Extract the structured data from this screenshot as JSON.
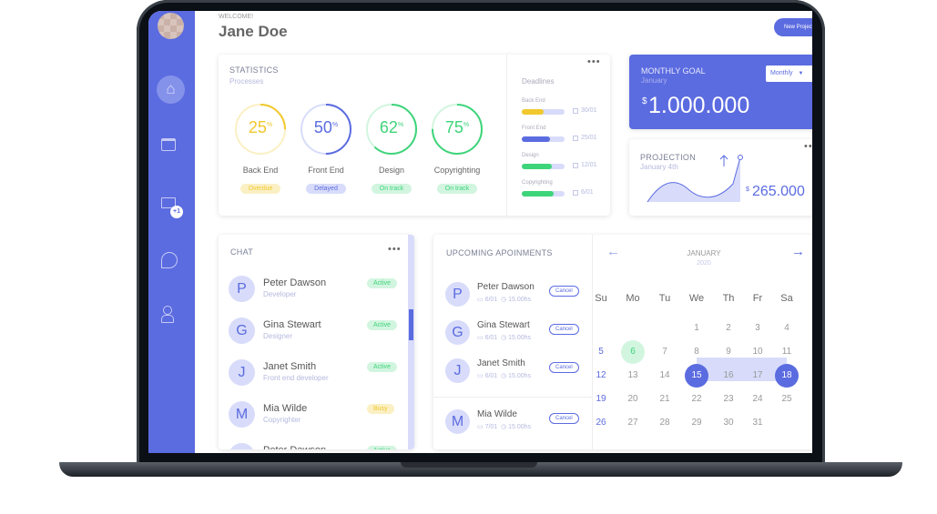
{
  "header": {
    "welcome": "WELCOME!",
    "name": "Jane Doe",
    "new_project": "New Project"
  },
  "sidebar": {
    "items": [
      "home-icon",
      "calendar-icon",
      "mail-icon",
      "chat-icon",
      "user-icon"
    ],
    "mail_badge": "+1"
  },
  "statistics": {
    "title": "STATISTICS",
    "subtitle": "Processes",
    "items": [
      {
        "label": "Back End",
        "value": 25,
        "pct": "25",
        "status": "Overdue",
        "color": "#f1c82e",
        "track": "#fbf0c4",
        "bbg": "#fbf0c4"
      },
      {
        "label": "Front End",
        "value": 50,
        "pct": "50",
        "status": "Delayed",
        "color": "#5b6be0",
        "track": "#d8dcfa",
        "bbg": "#d8dcfa"
      },
      {
        "label": "Design",
        "value": 62,
        "pct": "62",
        "status": "On track",
        "color": "#3ed47a",
        "track": "#d2f5e0",
        "bbg": "#d2f5e0"
      },
      {
        "label": "Copyrighting",
        "value": 75,
        "pct": "75",
        "status": "On track",
        "color": "#3ed47a",
        "track": "#d2f5e0",
        "bbg": "#d2f5e0"
      }
    ],
    "pct_sign": "%"
  },
  "deadlines": {
    "title": "Deadlines",
    "items": [
      {
        "label": "Back End",
        "progress": 50,
        "date": "30/01",
        "color": "#f1c82e"
      },
      {
        "label": "Front End",
        "progress": 65,
        "date": "25/01",
        "color": "#5b6be0"
      },
      {
        "label": "Design",
        "progress": 70,
        "date": "12/01",
        "color": "#3ed47a"
      },
      {
        "label": "Copyrighting",
        "progress": 75,
        "date": "6/01",
        "color": "#3ed47a"
      }
    ]
  },
  "monthly_goal": {
    "title": "MONTHLY GOAL",
    "subtitle": "January",
    "currency": "$",
    "amount": "1.000.000",
    "select": "Monthly"
  },
  "projection": {
    "title": "PROJECTION",
    "subtitle": "January 4th",
    "currency": "$",
    "amount": "265.000"
  },
  "chat": {
    "title": "CHAT",
    "items": [
      {
        "initial": "P",
        "name": "Peter Dawson",
        "role": "Developer",
        "status": "Active"
      },
      {
        "initial": "G",
        "name": "Gina Stewart",
        "role": "Designer",
        "status": "Active"
      },
      {
        "initial": "J",
        "name": "Janet Smith",
        "role": "Front end developer",
        "status": "Active"
      },
      {
        "initial": "M",
        "name": "Mia Wilde",
        "role": "Copyrighter",
        "status": "Busy"
      },
      {
        "initial": "P",
        "name": "Peter Dawson",
        "role": "",
        "status": "Active"
      }
    ]
  },
  "appointments": {
    "title": "UPCOMING APOINMENTS",
    "cancel": "Cancel",
    "items": [
      {
        "initial": "P",
        "name": "Peter Dawson",
        "date": "6/01",
        "time": "15.00hs"
      },
      {
        "initial": "G",
        "name": "Gina Stewart",
        "date": "6/01",
        "time": "15.00hs"
      },
      {
        "initial": "J",
        "name": "Janet Smith",
        "date": "6/01",
        "time": "15.00hs"
      },
      {
        "initial": "M",
        "name": "Mia Wilde",
        "date": "7/01",
        "time": "15.00hs"
      }
    ]
  },
  "calendar": {
    "month": "JANUARY",
    "year": "2020",
    "weekdays": [
      "Su",
      "Mo",
      "Tu",
      "We",
      "Th",
      "Fr",
      "Sa"
    ],
    "first_weekday": 3,
    "days": 31,
    "today": 6,
    "range_start": 15,
    "range_end": 18,
    "accent": "#5b6be0"
  }
}
